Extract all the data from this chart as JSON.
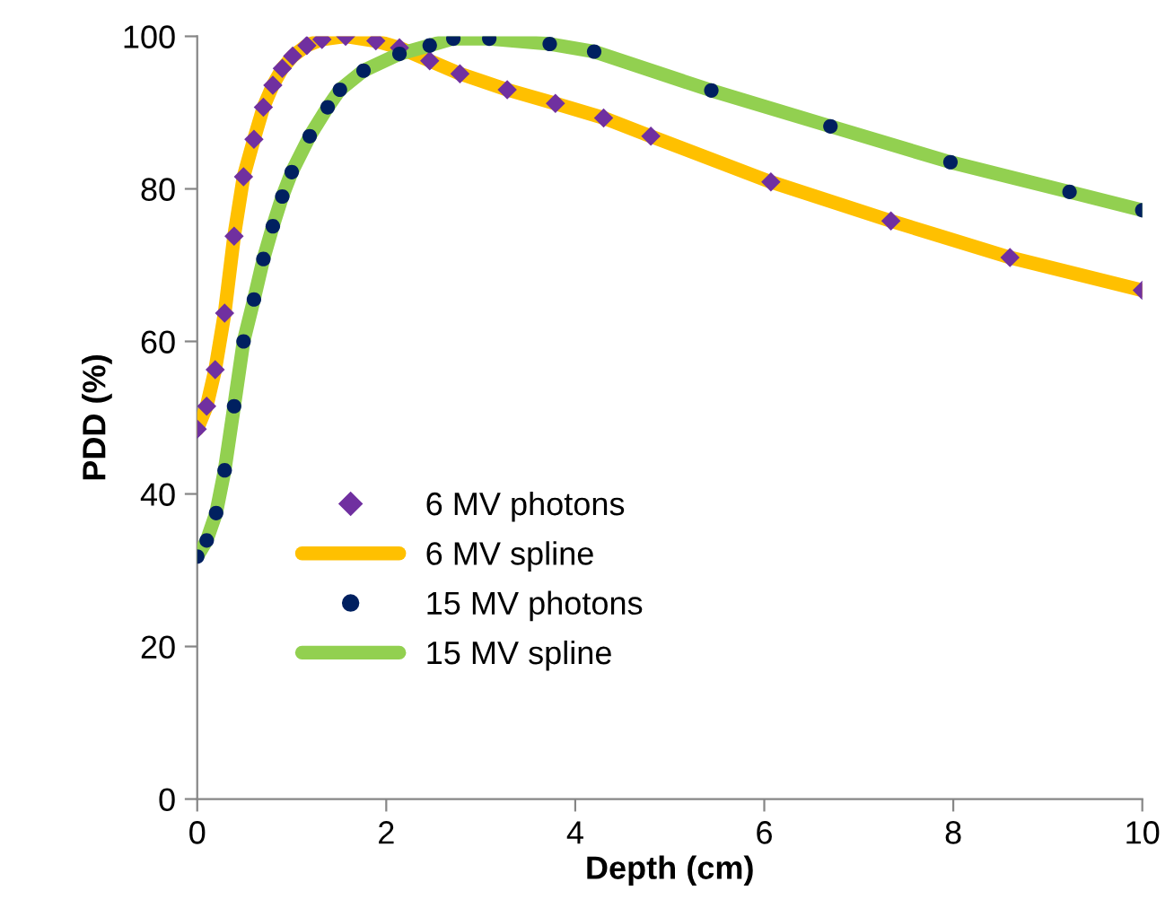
{
  "chart_data": {
    "type": "scatter",
    "xlabel": "Depth (cm)",
    "ylabel": "PDD (%)",
    "xlim": [
      0,
      10
    ],
    "xticks": [
      0,
      2,
      4,
      6,
      8,
      10
    ],
    "ylim": [
      0,
      100
    ],
    "yticks": [
      0,
      20,
      40,
      60,
      80,
      100
    ],
    "grid": false,
    "legend": "bottom left",
    "series": [
      {
        "name": "6 MV photons",
        "color": "#7030a0",
        "marker": "diamond",
        "x": [
          0,
          0.1,
          0.19,
          0.29,
          0.39,
          0.49,
          0.6,
          0.7,
          0.8,
          0.9,
          1.01,
          1.16,
          1.32,
          1.57,
          1.89,
          2.14,
          2.46,
          2.78,
          3.28,
          3.79,
          4.3,
          4.8,
          6.07,
          7.34,
          8.6,
          10
        ],
        "values": [
          48.5,
          51.5,
          56.3,
          63.7,
          73.8,
          81.6,
          86.5,
          90.7,
          93.6,
          95.8,
          97.4,
          98.8,
          99.6,
          100,
          99.4,
          98.5,
          96.8,
          95.1,
          93.0,
          91.2,
          89.3,
          86.9,
          80.9,
          75.8,
          71.0,
          66.7
        ]
      },
      {
        "name": "6 MV spline",
        "type": "line",
        "color": "#ffc000",
        "marker": "none",
        "line_style": "solid",
        "x": [
          0,
          0.1,
          0.19,
          0.29,
          0.39,
          0.49,
          0.6,
          0.7,
          0.8,
          0.9,
          1.01,
          1.16,
          1.32,
          1.57,
          1.89,
          2.14,
          2.46,
          2.78,
          3.28,
          3.79,
          4.3,
          4.8,
          6.07,
          7.34,
          8.6,
          10
        ],
        "values": [
          48.5,
          51.5,
          56.3,
          63.7,
          73.8,
          81.6,
          86.5,
          90.7,
          93.6,
          95.8,
          97.4,
          98.8,
          99.6,
          100,
          99.4,
          98.5,
          96.8,
          95.1,
          93.0,
          91.2,
          89.3,
          86.9,
          80.9,
          75.8,
          71.0,
          66.7
        ]
      },
      {
        "name": "15 MV photons",
        "color": "#002060",
        "marker": "circle",
        "x": [
          0,
          0.1,
          0.2,
          0.29,
          0.39,
          0.49,
          0.6,
          0.7,
          0.8,
          0.9,
          1.0,
          1.19,
          1.38,
          1.51,
          1.76,
          2.14,
          2.46,
          2.71,
          3.09,
          3.73,
          4.2,
          5.44,
          6.7,
          7.97,
          9.23,
          10
        ],
        "values": [
          31.8,
          33.9,
          37.5,
          43.1,
          51.5,
          60.0,
          65.5,
          70.8,
          75.1,
          79.0,
          82.2,
          86.9,
          90.7,
          93.0,
          95.5,
          97.7,
          98.8,
          99.7,
          99.7,
          99.0,
          98.0,
          92.9,
          88.2,
          83.5,
          79.6,
          77.2
        ]
      },
      {
        "name": "15 MV spline",
        "type": "line",
        "color": "#92d050",
        "marker": "none",
        "line_style": "solid",
        "x": [
          0,
          0.1,
          0.2,
          0.29,
          0.39,
          0.49,
          0.6,
          0.7,
          0.8,
          0.9,
          1.0,
          1.19,
          1.38,
          1.51,
          1.76,
          2.14,
          2.46,
          2.71,
          3.09,
          3.73,
          4.2,
          5.44,
          6.7,
          7.97,
          9.23,
          10
        ],
        "values": [
          31.8,
          33.9,
          37.5,
          43.1,
          51.5,
          60.0,
          65.5,
          70.8,
          75.1,
          79.0,
          82.2,
          86.9,
          90.7,
          93.0,
          95.5,
          97.7,
          98.8,
          99.7,
          99.7,
          99.0,
          98.0,
          92.9,
          88.2,
          83.5,
          79.6,
          77.2
        ]
      }
    ]
  }
}
